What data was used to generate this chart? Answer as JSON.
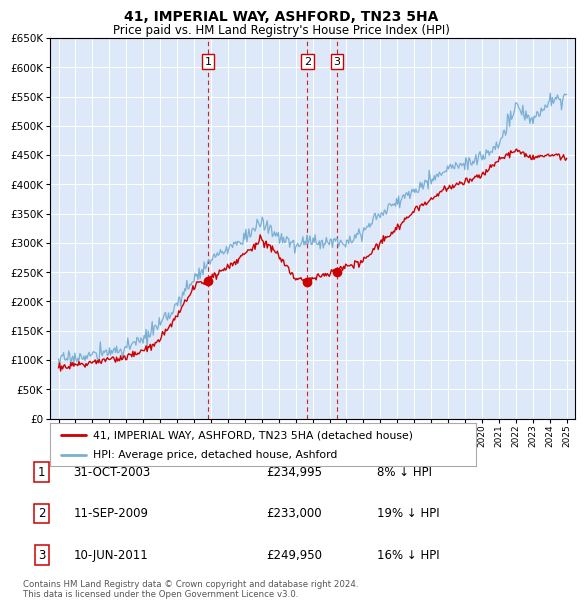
{
  "title": "41, IMPERIAL WAY, ASHFORD, TN23 5HA",
  "subtitle": "Price paid vs. HM Land Registry's House Price Index (HPI)",
  "legend_label_red": "41, IMPERIAL WAY, ASHFORD, TN23 5HA (detached house)",
  "legend_label_blue": "HPI: Average price, detached house, Ashford",
  "footer": "Contains HM Land Registry data © Crown copyright and database right 2024.\nThis data is licensed under the Open Government Licence v3.0.",
  "sales": [
    {
      "num": 1,
      "date": "31-OCT-2003",
      "price": "£234,995",
      "pct": "8% ↓ HPI",
      "year": 2003.83
    },
    {
      "num": 2,
      "date": "11-SEP-2009",
      "price": "£233,000",
      "pct": "19% ↓ HPI",
      "year": 2009.7
    },
    {
      "num": 3,
      "date": "10-JUN-2011",
      "price": "£249,950",
      "pct": "16% ↓ HPI",
      "year": 2011.44
    }
  ],
  "sale_values": [
    234995,
    233000,
    249950
  ],
  "sale_years": [
    2003.83,
    2009.7,
    2011.44
  ],
  "ylim": [
    0,
    650000
  ],
  "yticks": [
    0,
    50000,
    100000,
    150000,
    200000,
    250000,
    300000,
    350000,
    400000,
    450000,
    500000,
    550000,
    600000,
    650000
  ],
  "xlim_start": 1994.5,
  "xlim_end": 2025.5,
  "bg_color": "#dde8f8",
  "grid_color": "#ffffff",
  "red_color": "#cc0000",
  "blue_color": "#7aafd4"
}
